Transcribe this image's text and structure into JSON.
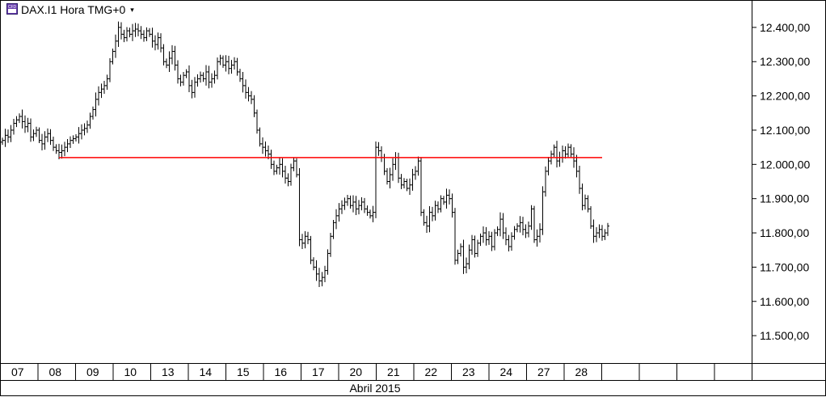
{
  "header": {
    "symbol_title": "DAX.I1 Hora TMG+0",
    "dropdown_glyph": "▾",
    "icon": "cfd-icon",
    "icon_text": "CFD"
  },
  "chart_data": {
    "type": "ohlc",
    "instrument": "DAX.I1",
    "timeframe": "Hora",
    "timezone": "TMG+0",
    "ylim": [
      11420,
      12480
    ],
    "y_ticks": [
      {
        "value": 12400,
        "label": "12.400,00"
      },
      {
        "value": 12300,
        "label": "12.300,00"
      },
      {
        "value": 12200,
        "label": "12.200,00"
      },
      {
        "value": 12100,
        "label": "12.100,00"
      },
      {
        "value": 12000,
        "label": "12.000,00"
      },
      {
        "value": 11900,
        "label": "11.900,00"
      },
      {
        "value": 11800,
        "label": "11.800,00"
      },
      {
        "value": 11700,
        "label": "11.700,00"
      },
      {
        "value": 11600,
        "label": "11.600,00"
      },
      {
        "value": 11500,
        "label": "11.500,00"
      }
    ],
    "x_day_labels": [
      "07",
      "08",
      "09",
      "10",
      "13",
      "14",
      "15",
      "16",
      "17",
      "20",
      "21",
      "22",
      "23",
      "24",
      "27",
      "28",
      "",
      "",
      "",
      ""
    ],
    "month_label": "Abril 2015",
    "horizontal_line": {
      "value": 12020,
      "from_bar": 20,
      "to_bar": 212,
      "color": "#ff0000"
    },
    "bar_color": "#000000",
    "grid": false,
    "closes": [
      12070,
      12085,
      12080,
      12100,
      12120,
      12130,
      12140,
      12125,
      12110,
      12120,
      12080,
      12090,
      12100,
      12070,
      12060,
      12080,
      12090,
      12070,
      12050,
      12040,
      12035,
      12040,
      12050,
      12060,
      12070,
      12075,
      12080,
      12090,
      12100,
      12105,
      12115,
      12140,
      12160,
      12190,
      12210,
      12220,
      12230,
      12250,
      12300,
      12330,
      12360,
      12400,
      12380,
      12370,
      12390,
      12380,
      12390,
      12395,
      12390,
      12380,
      12370,
      12390,
      12380,
      12360,
      12350,
      12370,
      12340,
      12300,
      12290,
      12310,
      12330,
      12290,
      12250,
      12240,
      12260,
      12270,
      12230,
      12210,
      12240,
      12250,
      12260,
      12250,
      12270,
      12240,
      12250,
      12260,
      12300,
      12310,
      12290,
      12300,
      12280,
      12290,
      12300,
      12270,
      12250,
      12230,
      12210,
      12200,
      12190,
      12150,
      12100,
      12060,
      12050,
      12040,
      12030,
      12000,
      11980,
      11990,
      12000,
      11980,
      11960,
      11950,
      11990,
      12010,
      11970,
      11780,
      11770,
      11790,
      11780,
      11720,
      11700,
      11680,
      11660,
      11670,
      11690,
      11740,
      11790,
      11830,
      11850,
      11870,
      11880,
      11890,
      11900,
      11880,
      11890,
      11870,
      11880,
      11890,
      11870,
      11860,
      11850,
      11860,
      12050,
      12040,
      12020,
      11980,
      11950,
      11970,
      12000,
      12020,
      11960,
      11940,
      11950,
      11930,
      11940,
      11970,
      11980,
      12010,
      11860,
      11830,
      11820,
      11860,
      11850,
      11880,
      11870,
      11900,
      11890,
      11910,
      11900,
      11860,
      11720,
      11740,
      11760,
      11700,
      11710,
      11750,
      11780,
      11740,
      11770,
      11790,
      11800,
      11780,
      11790,
      11760,
      11800,
      11810,
      11840,
      11800,
      11780,
      11760,
      11790,
      11810,
      11820,
      11830,
      11810,
      11800,
      11820,
      11870,
      11780,
      11790,
      11810,
      11920,
      11980,
      12010,
      12030,
      12050,
      12010,
      12020,
      12040,
      12030,
      12050,
      12030,
      12010,
      11980,
      11930,
      11880,
      11900,
      11870,
      11820,
      11790,
      11800,
      11810,
      11790,
      11800,
      11820
    ]
  }
}
